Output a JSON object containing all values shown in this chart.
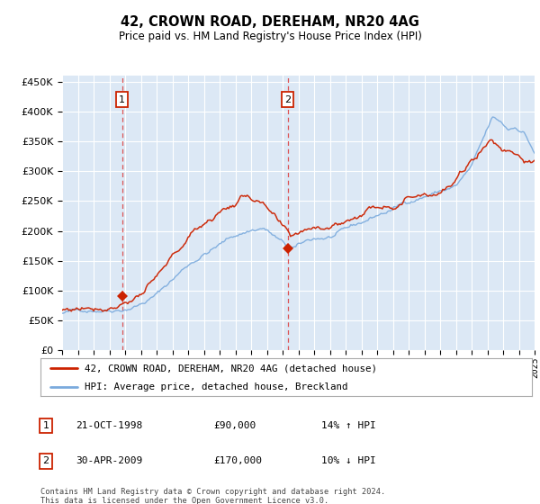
{
  "title": "42, CROWN ROAD, DEREHAM, NR20 4AG",
  "subtitle": "Price paid vs. HM Land Registry's House Price Index (HPI)",
  "ylim": [
    0,
    460000
  ],
  "yticks": [
    0,
    50000,
    100000,
    150000,
    200000,
    250000,
    300000,
    350000,
    400000,
    450000
  ],
  "plot_bg": "#dce8f5",
  "grid_color": "#ffffff",
  "hpi_color": "#7aaadd",
  "price_color": "#cc2200",
  "vline_color": "#dd4444",
  "legend_label_price": "42, CROWN ROAD, DEREHAM, NR20 4AG (detached house)",
  "legend_label_hpi": "HPI: Average price, detached house, Breckland",
  "transaction1_date": "21-OCT-1998",
  "transaction1_price": "£90,000",
  "transaction1_hpi": "14% ↑ HPI",
  "transaction2_date": "30-APR-2009",
  "transaction2_price": "£170,000",
  "transaction2_hpi": "10% ↓ HPI",
  "footer": "Contains HM Land Registry data © Crown copyright and database right 2024.\nThis data is licensed under the Open Government Licence v3.0.",
  "marker1_year": 1998.8,
  "marker1_value": 90000,
  "marker2_year": 2009.33,
  "marker2_value": 170000
}
